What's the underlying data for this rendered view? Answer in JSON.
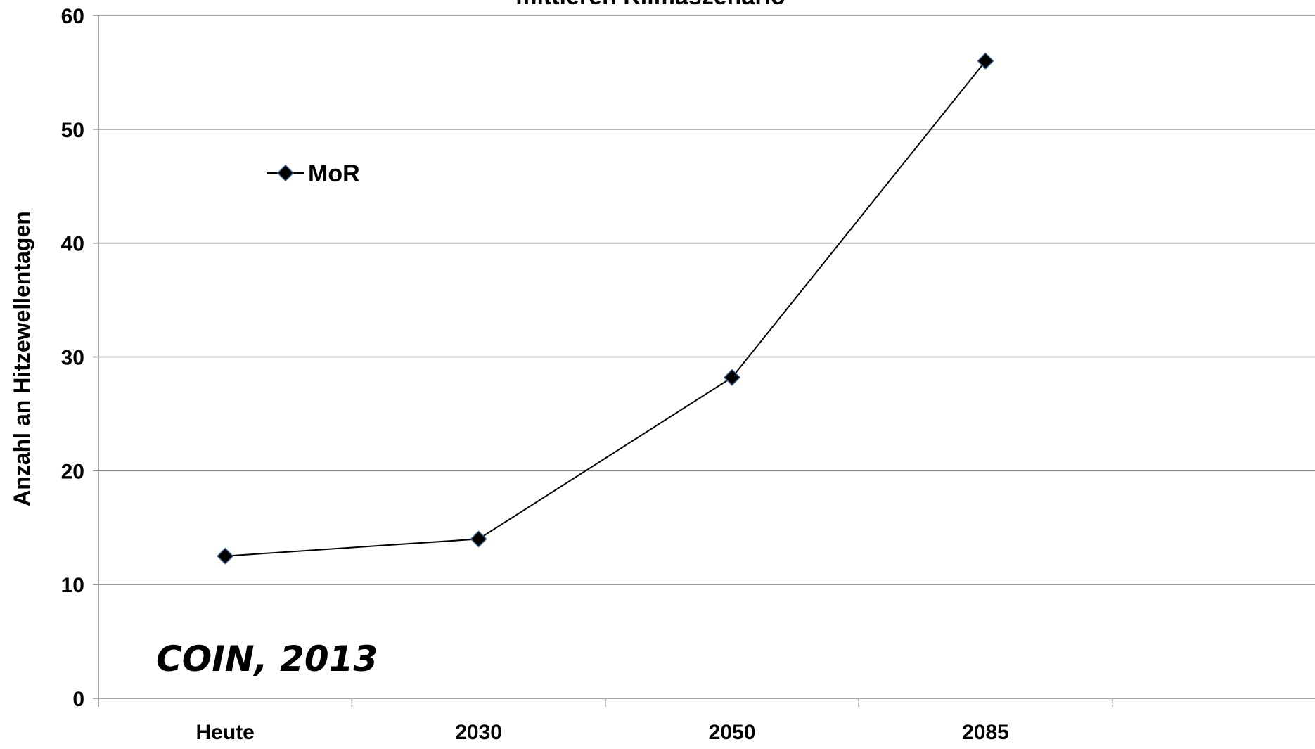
{
  "chart_data": {
    "type": "line",
    "title": "mittleren Klimaszenario",
    "xlabel": "",
    "ylabel": "Anzahl an Hitzewellentagen",
    "categories": [
      "Heute",
      "2030",
      "2050",
      "2085"
    ],
    "ylim": [
      0,
      60
    ],
    "yticks": [
      0,
      10,
      20,
      30,
      40,
      50,
      60
    ],
    "grid": true,
    "legend": "top-left",
    "series": [
      {
        "name": "MoR",
        "values": [
          12.5,
          14,
          28.2,
          56
        ],
        "color": "#000000",
        "marker": "diamond"
      }
    ],
    "annotations": [
      "COIN, 2013"
    ]
  }
}
